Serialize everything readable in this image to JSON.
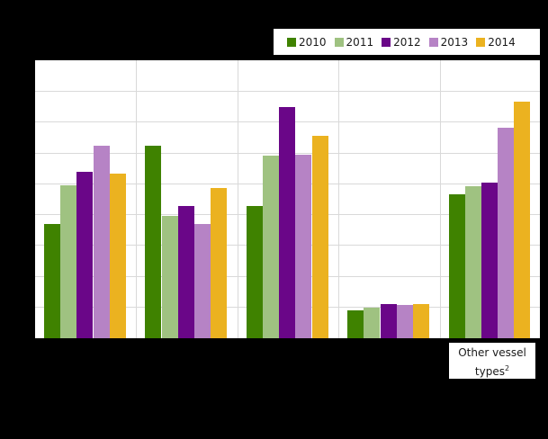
{
  "chart_data": {
    "type": "bar",
    "title": "",
    "xlabel": "",
    "ylabel": "",
    "note": "Y-axis tick labels and most category labels are not legible (rendered black on black). Values expressed in gridline units (9 equal intervals between baseline and top).",
    "ylim": [
      0,
      9
    ],
    "grid": true,
    "legend_position": "top-right",
    "categories": [
      "",
      "",
      "",
      "",
      "Other vessel types²"
    ],
    "series": [
      {
        "name": "2010",
        "color": "#3f8200",
        "values": [
          3.7,
          6.26,
          4.3,
          0.91,
          4.68
        ]
      },
      {
        "name": "2011",
        "color": "#9fc281",
        "values": [
          4.97,
          3.98,
          5.94,
          1.0,
          4.94
        ]
      },
      {
        "name": "2012",
        "color": "#6a0688",
        "values": [
          5.4,
          4.3,
          7.52,
          1.11,
          5.06
        ]
      },
      {
        "name": "2013",
        "color": "#b683c5",
        "values": [
          6.26,
          3.7,
          5.96,
          1.08,
          6.84
        ]
      },
      {
        "name": "2014",
        "color": "#ebb220",
        "values": [
          5.35,
          4.88,
          6.58,
          1.11,
          7.69
        ]
      }
    ]
  },
  "legend": {
    "items": [
      {
        "label": "2010",
        "color": "#3f8200"
      },
      {
        "label": "2011",
        "color": "#9fc281"
      },
      {
        "label": "2012",
        "color": "#6a0688"
      },
      {
        "label": "2013",
        "color": "#b683c5"
      },
      {
        "label": "2014",
        "color": "#ebb220"
      }
    ]
  },
  "xaxis": {
    "last_label_main": "Other vessel",
    "last_label_line2": "types",
    "last_label_sup": "2"
  }
}
